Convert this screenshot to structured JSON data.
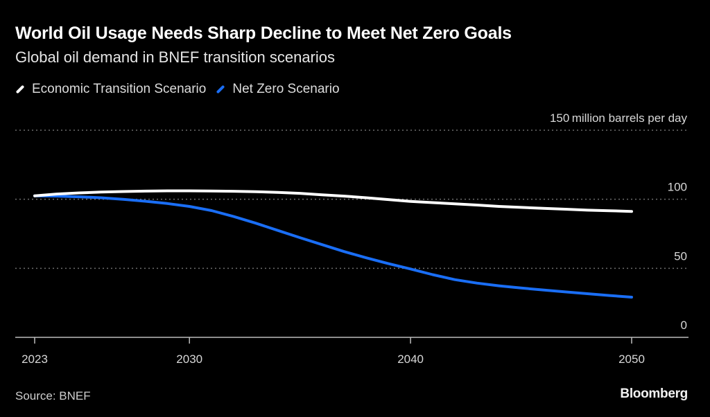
{
  "header": {
    "title": "World Oil Usage Needs Sharp Decline to Meet Net Zero Goals",
    "subtitle": "Global oil demand in BNEF transition scenarios"
  },
  "legend": [
    {
      "label": "Economic Transition Scenario",
      "color": "#ffffff"
    },
    {
      "label": "Net Zero Scenario",
      "color": "#1a6ef5"
    }
  ],
  "footer": {
    "source": "Source: BNEF",
    "brand": "Bloomberg"
  },
  "chart_data": {
    "type": "line",
    "title": "World Oil Usage Needs Sharp Decline to Meet Net Zero Goals",
    "subtitle": "Global oil demand in BNEF transition scenarios",
    "xlabel": "",
    "ylabel": "million barrels per day",
    "y_unit_label": "million barrels per day",
    "xlim": [
      2023,
      2053
    ],
    "ylim": [
      0,
      150
    ],
    "x_ticks": [
      2023,
      2030,
      2040,
      2050
    ],
    "y_ticks": [
      0,
      50,
      100,
      150
    ],
    "grid": true,
    "legend_position": "top-left",
    "x": [
      2023,
      2024,
      2025,
      2026,
      2027,
      2028,
      2029,
      2030,
      2031,
      2032,
      2033,
      2034,
      2035,
      2036,
      2037,
      2038,
      2039,
      2040,
      2041,
      2042,
      2043,
      2044,
      2045,
      2046,
      2047,
      2048,
      2049,
      2050
    ],
    "series": [
      {
        "name": "Economic Transition Scenario",
        "color": "#ffffff",
        "values": [
          102.5,
          103.8,
          104.6,
          105.2,
          105.6,
          105.9,
          106.1,
          106.1,
          106.0,
          105.8,
          105.5,
          105.0,
          104.3,
          103.2,
          102.3,
          101.1,
          99.8,
          98.5,
          97.6,
          96.7,
          95.8,
          94.8,
          94.1,
          93.4,
          92.8,
          92.1,
          91.7,
          91.2
        ]
      },
      {
        "name": "Net Zero Scenario",
        "color": "#1a6ef5",
        "values": [
          102.5,
          102.3,
          101.8,
          101.1,
          100.0,
          98.6,
          96.9,
          94.8,
          91.8,
          87.5,
          82.7,
          77.4,
          72.2,
          67.1,
          62.1,
          57.6,
          53.4,
          49.5,
          45.4,
          41.8,
          39.3,
          37.3,
          35.7,
          34.3,
          32.9,
          31.6,
          30.3,
          29.1
        ]
      }
    ]
  }
}
